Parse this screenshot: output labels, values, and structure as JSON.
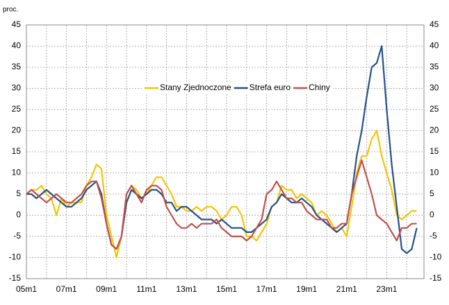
{
  "chart_data": {
    "type": "line",
    "y_unit_label": "proc.",
    "categories": [
      "05m1",
      null,
      null,
      null,
      null,
      null,
      null,
      null,
      "07m1",
      null,
      null,
      null,
      null,
      null,
      null,
      null,
      "09m1",
      null,
      null,
      null,
      null,
      null,
      null,
      null,
      "11m1",
      null,
      null,
      null,
      null,
      null,
      null,
      null,
      "13m1",
      null,
      null,
      null,
      null,
      null,
      null,
      null,
      "15m1",
      null,
      null,
      null,
      null,
      null,
      null,
      null,
      "17m1",
      null,
      null,
      null,
      null,
      null,
      null,
      null,
      "19m1",
      null,
      null,
      null,
      null,
      null,
      null,
      null,
      "21m1",
      null,
      null,
      null,
      null,
      null,
      null,
      null,
      "23m1",
      null,
      null,
      null,
      null,
      null,
      null
    ],
    "series": [
      {
        "name": "Stany Zjednoczone",
        "color": "#f5c400",
        "values": [
          5,
          6,
          6,
          7,
          5,
          4,
          0,
          4,
          2,
          3,
          3,
          3,
          7,
          9,
          12,
          11,
          0,
          -5,
          -10,
          -5,
          5,
          7,
          6,
          4,
          5,
          7,
          9,
          9,
          7,
          5,
          2,
          2,
          1,
          1,
          2,
          1,
          2,
          2,
          1,
          -1,
          0,
          2,
          2,
          0,
          -5,
          -5,
          -6,
          -4,
          -2,
          2,
          3,
          7,
          6,
          6,
          4,
          5,
          4,
          3,
          0,
          1,
          0,
          -2,
          -4,
          -3,
          -5,
          2,
          10,
          14,
          14,
          18,
          20,
          14,
          10,
          6,
          0,
          -1,
          0,
          1,
          1
        ]
      },
      {
        "name": "Strefa euro",
        "color": "#24508a",
        "values": [
          5,
          5,
          4,
          5,
          6,
          5,
          4,
          3,
          2,
          2,
          3,
          4,
          6,
          7,
          8,
          5,
          -2,
          -7,
          -8,
          -5,
          3,
          6,
          5,
          4,
          5,
          6,
          6,
          5,
          3,
          3,
          1,
          2,
          2,
          1,
          0,
          -1,
          -1,
          -1,
          -2,
          -1,
          -2,
          -3,
          -3,
          -3,
          -4,
          -4,
          -3,
          -2,
          -1,
          2,
          3,
          5,
          4,
          3,
          3,
          4,
          3,
          2,
          0,
          -1,
          -2,
          -3,
          -4,
          -3,
          -2,
          5,
          14,
          20,
          28,
          35,
          36,
          40,
          25,
          12,
          2,
          -8,
          -9,
          -8,
          -3
        ]
      },
      {
        "name": "Chiny",
        "color": "#c0504d",
        "values": [
          5,
          6,
          5,
          4,
          3,
          4,
          5,
          4,
          3,
          3,
          4,
          5,
          7,
          8,
          8,
          4,
          -2,
          -7,
          -8,
          -5,
          5,
          7,
          5,
          3,
          6,
          7,
          7,
          6,
          2,
          0,
          -2,
          -3,
          -3,
          -2,
          -3,
          -2,
          -2,
          -2,
          -1,
          -3,
          -4,
          -5,
          -5,
          -5,
          -6,
          -5,
          -3,
          -1,
          5,
          6,
          8,
          6,
          4,
          4,
          3,
          3,
          1,
          0,
          -1,
          -1,
          -1,
          -3,
          -3,
          -2,
          -2,
          5,
          9,
          13,
          9,
          5,
          0,
          -1,
          -2,
          -4,
          -6,
          -3,
          -3,
          -2,
          -2
        ]
      }
    ],
    "ylim": [
      -15,
      45
    ],
    "yticks": [
      -15,
      -10,
      -5,
      0,
      5,
      10,
      15,
      20,
      25,
      30,
      35,
      40,
      45
    ],
    "y2lim": [
      -15,
      45
    ],
    "y2ticks": [
      -15,
      -10,
      -5,
      0,
      5,
      10,
      15,
      20,
      25,
      30,
      35,
      40,
      45
    ],
    "grid": true,
    "legend": "top"
  }
}
